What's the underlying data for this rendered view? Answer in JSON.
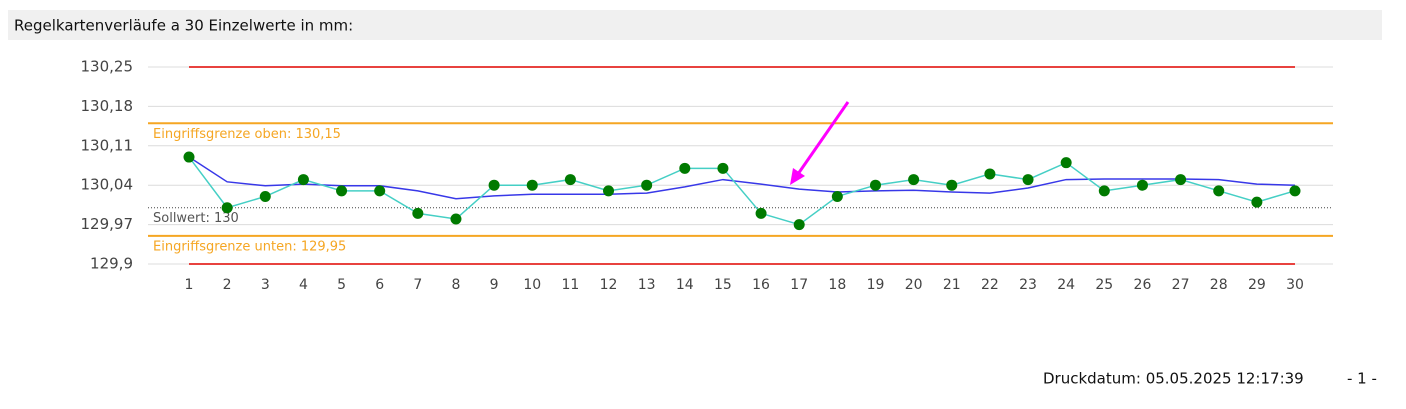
{
  "header": {
    "title": "Regelkartenverläufe a 30 Einzelwerte in mm:"
  },
  "chart_data": {
    "type": "line",
    "categories": [
      "1",
      "2",
      "3",
      "4",
      "5",
      "6",
      "7",
      "8",
      "9",
      "10",
      "11",
      "12",
      "13",
      "14",
      "15",
      "16",
      "17",
      "18",
      "19",
      "20",
      "21",
      "22",
      "23",
      "24",
      "25",
      "26",
      "27",
      "28",
      "29",
      "30"
    ],
    "series": [
      {
        "color": "#3838e8",
        "values": [
          130.09,
          130.046,
          130.039,
          130.042,
          130.039,
          130.039,
          130.03,
          130.016,
          130.021,
          130.024,
          130.024,
          130.024,
          130.026,
          130.037,
          130.05,
          130.042,
          130.033,
          130.028,
          130.03,
          130.031,
          130.028,
          130.026,
          130.035,
          130.05,
          130.051,
          130.051,
          130.051,
          130.05,
          130.042,
          130.04
        ]
      },
      {
        "color": "#45cfc5",
        "marker_color": "#007a00",
        "values": [
          130.09,
          130.0,
          130.02,
          130.05,
          130.03,
          130.03,
          129.99,
          129.98,
          130.04,
          130.04,
          130.05,
          130.03,
          130.04,
          130.07,
          130.07,
          129.99,
          129.97,
          130.02,
          130.04,
          130.05,
          130.04,
          130.06,
          130.05,
          130.08,
          130.03,
          130.04,
          130.05,
          130.03,
          130.01,
          130.03
        ]
      }
    ],
    "control_lines": [
      {
        "value": 130.25,
        "color": "#e8423f"
      },
      {
        "value": 130.15,
        "color": "#f5a623",
        "label": "Eingriffsgrenze oben: 130,15"
      },
      {
        "value": 130,
        "color": "#444444",
        "style": "dotted",
        "label": "Sollwert: 130"
      },
      {
        "value": 129.95,
        "color": "#f5a623",
        "label": "Eingriffsgrenze unten: 129,95"
      },
      {
        "value": 129.9,
        "color": "#e8423f"
      }
    ],
    "ylim": [
      129.9,
      130.25
    ],
    "yticks": [
      {
        "value": 129.9,
        "label": "129,9"
      },
      {
        "value": 129.97,
        "label": "129,97"
      },
      {
        "value": 130.04,
        "label": "130,04"
      },
      {
        "value": 130.11,
        "label": "130,11"
      },
      {
        "value": 130.18,
        "label": "130,18"
      },
      {
        "value": 130.25,
        "label": "130,25"
      }
    ],
    "grid": true
  },
  "footer": {
    "print_date": "Druckdatum: 05.05.2025 12:17:39",
    "page": "- 1 -"
  }
}
